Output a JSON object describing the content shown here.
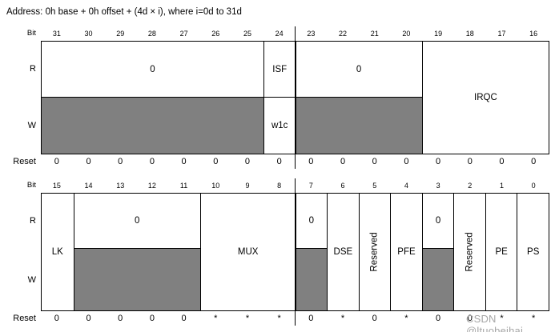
{
  "title": "Address: 0h base + 0h offset + (4d × i), where i=0d to 31d",
  "row_labels": {
    "bit": "Bit",
    "read": "R",
    "write": "W",
    "reset": "Reset"
  },
  "watermark": "CSDN @ltuobeihai",
  "colors": {
    "write_only_fill": "#808080",
    "border": "#000000",
    "watermark_text": "#a6a6a6"
  },
  "high_word": {
    "bit_numbers": [
      "31",
      "30",
      "29",
      "28",
      "27",
      "26",
      "25",
      "24",
      "23",
      "22",
      "21",
      "20",
      "19",
      "18",
      "17",
      "16"
    ],
    "fields": {
      "zero_31_25": {
        "read": "0"
      },
      "isf": {
        "read": "ISF",
        "write": "w1c"
      },
      "zero_23_20": {
        "read": "0"
      },
      "irqc": {
        "label": "IRQC"
      }
    },
    "reset": [
      "0",
      "0",
      "0",
      "0",
      "0",
      "0",
      "0",
      "0",
      "0",
      "0",
      "0",
      "0",
      "0",
      "0",
      "0",
      "0"
    ]
  },
  "low_word": {
    "bit_numbers": [
      "15",
      "14",
      "13",
      "12",
      "11",
      "10",
      "9",
      "8",
      "7",
      "6",
      "5",
      "4",
      "3",
      "2",
      "1",
      "0"
    ],
    "fields": {
      "lk": {
        "label": "LK"
      },
      "zero_14_11": {
        "read": "0"
      },
      "mux": {
        "label": "MUX"
      },
      "zero_7": {
        "read": "0"
      },
      "dse": {
        "label": "DSE"
      },
      "reserved_5": {
        "label": "Reserved"
      },
      "pfe": {
        "label": "PFE"
      },
      "zero_3": {
        "read": "0"
      },
      "reserved_2": {
        "label": "Reserved"
      },
      "pe": {
        "label": "PE"
      },
      "ps": {
        "label": "PS"
      }
    },
    "reset": [
      "0",
      "0",
      "0",
      "0",
      "0",
      "*",
      "*",
      "*",
      "0",
      "*",
      "0",
      "*",
      "0",
      "0",
      "*",
      "*"
    ]
  }
}
